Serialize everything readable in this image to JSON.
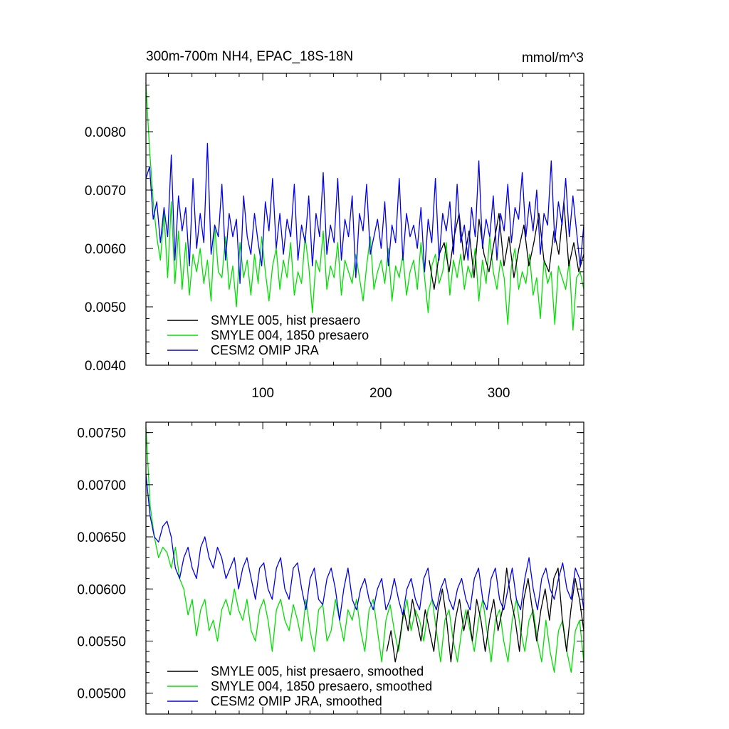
{
  "chart_data": [
    {
      "type": "line",
      "title": "300m-700m NH4, EPAC_18S-18N",
      "units": "mmol/m^3",
      "xlim": [
        1,
        372
      ],
      "ylim": [
        0.004,
        0.009
      ],
      "x_ticks": [
        100,
        200,
        300
      ],
      "x_tick_labels": [
        "100",
        "200",
        "300"
      ],
      "y_ticks": [
        0.004,
        0.005,
        0.006,
        0.007,
        0.008
      ],
      "y_tick_labels": [
        "0.0040",
        "0.0050",
        "0.0060",
        "0.0070",
        "0.0080"
      ],
      "legend_position": "bottom-left",
      "grid": false,
      "series": [
        {
          "name": "SMYLE 005, hist presaero",
          "color": "#000000",
          "x_start": 241,
          "x_end": 372,
          "values": [
            0.0058,
            0.0053,
            0.0059,
            0.0061,
            0.0056,
            0.0062,
            0.0066,
            0.0058,
            0.0063,
            0.0055,
            0.0065,
            0.0059,
            0.0056,
            0.0061,
            0.0066,
            0.0057,
            0.0062,
            0.0055,
            0.006,
            0.0064,
            0.0057,
            0.0061,
            0.0066,
            0.0058,
            0.0056,
            0.0063,
            0.0059,
            0.0068,
            0.0057,
            0.0061,
            0.0056,
            0.0059
          ]
        },
        {
          "name": "SMYLE 004, 1850 presaero",
          "color": "#00e000",
          "x_start": 1,
          "x_end": 372,
          "values": [
            0.0088,
            0.0077,
            0.0068,
            0.0062,
            0.0058,
            0.0066,
            0.0055,
            0.0068,
            0.0054,
            0.0063,
            0.0053,
            0.0061,
            0.0052,
            0.0059,
            0.0056,
            0.006,
            0.0054,
            0.0058,
            0.0051,
            0.0064,
            0.0056,
            0.0055,
            0.0062,
            0.0053,
            0.0057,
            0.005,
            0.0061,
            0.0055,
            0.0058,
            0.0052,
            0.0059,
            0.0054,
            0.0062,
            0.0056,
            0.0051,
            0.0057,
            0.006,
            0.0053,
            0.0058,
            0.0055,
            0.0061,
            0.0052,
            0.0056,
            0.0054,
            0.0062,
            0.0057,
            0.0049,
            0.0058,
            0.0056,
            0.0063,
            0.0053,
            0.0057,
            0.0055,
            0.0061,
            0.0052,
            0.0058,
            0.0056,
            0.0054,
            0.0059,
            0.0055,
            0.0051,
            0.0057,
            0.0062,
            0.0053,
            0.0056,
            0.0058,
            0.0054,
            0.006,
            0.0051,
            0.0057,
            0.0055,
            0.0059,
            0.0052,
            0.0056,
            0.0058,
            0.0053,
            0.0061,
            0.0055,
            0.0049,
            0.0057,
            0.0059,
            0.0054,
            0.0056,
            0.0061,
            0.0052,
            0.0058,
            0.0055,
            0.0059,
            0.0053,
            0.0057,
            0.0055,
            0.006,
            0.0051,
            0.0058,
            0.0054,
            0.0062,
            0.0056,
            0.0053,
            0.0058,
            0.0055,
            0.0047,
            0.0057,
            0.006,
            0.0053,
            0.0056,
            0.0054,
            0.0059,
            0.0052,
            0.0055,
            0.0048,
            0.0058,
            0.0054,
            0.0056,
            0.0047,
            0.0057,
            0.0055,
            0.0053,
            0.0058,
            0.0046,
            0.0055,
            0.0056,
            0.0053
          ]
        },
        {
          "name": "CESM2 OMIP JRA",
          "color": "#0000ee",
          "x_start": 1,
          "x_end": 372,
          "values": [
            0.0072,
            0.0074,
            0.0065,
            0.0068,
            0.0061,
            0.0067,
            0.0062,
            0.0076,
            0.0058,
            0.0069,
            0.0063,
            0.0067,
            0.0057,
            0.0072,
            0.006,
            0.0066,
            0.0061,
            0.0078,
            0.0059,
            0.0064,
            0.0062,
            0.0071,
            0.0058,
            0.0066,
            0.0062,
            0.0065,
            0.0054,
            0.0069,
            0.0062,
            0.0059,
            0.0066,
            0.0061,
            0.0057,
            0.0068,
            0.0063,
            0.0072,
            0.006,
            0.0066,
            0.0059,
            0.0065,
            0.0062,
            0.0071,
            0.0058,
            0.0064,
            0.0061,
            0.0069,
            0.0057,
            0.0066,
            0.0062,
            0.0073,
            0.0059,
            0.0064,
            0.0061,
            0.0072,
            0.0058,
            0.0065,
            0.0062,
            0.0069,
            0.0055,
            0.0066,
            0.0063,
            0.0071,
            0.0059,
            0.0062,
            0.0065,
            0.006,
            0.0068,
            0.0057,
            0.0064,
            0.0061,
            0.0072,
            0.0058,
            0.0066,
            0.0062,
            0.0064,
            0.006,
            0.0067,
            0.0056,
            0.0065,
            0.0061,
            0.0072,
            0.0058,
            0.0066,
            0.0063,
            0.0068,
            0.0059,
            0.0071,
            0.0061,
            0.0064,
            0.0058,
            0.0067,
            0.0062,
            0.0075,
            0.006,
            0.0065,
            0.0062,
            0.0069,
            0.0058,
            0.0066,
            0.0063,
            0.0071,
            0.0061,
            0.0067,
            0.0065,
            0.0073,
            0.0062,
            0.0068,
            0.0063,
            0.007,
            0.0059,
            0.0066,
            0.0064,
            0.0075,
            0.0061,
            0.0068,
            0.0064,
            0.0072,
            0.0062,
            0.0069,
            0.0063,
            0.0057,
            0.0064
          ]
        }
      ]
    },
    {
      "type": "line",
      "xlim": [
        1,
        372
      ],
      "ylim": [
        0.0048,
        0.0076
      ],
      "y_ticks": [
        0.005,
        0.0055,
        0.006,
        0.0065,
        0.007,
        0.0075
      ],
      "y_tick_labels": [
        "0.00500",
        "0.00550",
        "0.00600",
        "0.00650",
        "0.00700",
        "0.00750"
      ],
      "legend_position": "bottom-left",
      "grid": false,
      "series": [
        {
          "name": "SMYLE 005, hist presaero, smoothed",
          "color": "#000000",
          "x_start": 205,
          "x_end": 372,
          "values": [
            0.0054,
            0.0056,
            0.0053,
            0.0055,
            0.0058,
            0.0056,
            0.0059,
            0.0057,
            0.0055,
            0.0058,
            0.0056,
            0.0054,
            0.0058,
            0.006,
            0.0057,
            0.0053,
            0.0057,
            0.0059,
            0.0056,
            0.0058,
            0.0055,
            0.0059,
            0.0057,
            0.0054,
            0.0057,
            0.0059,
            0.0056,
            0.0058,
            0.0062,
            0.0059,
            0.0057,
            0.0054,
            0.0059,
            0.0061,
            0.0058,
            0.0055,
            0.0058,
            0.006,
            0.0057,
            0.0061,
            0.0062,
            0.0057,
            0.0054,
            0.0058,
            0.0061,
            0.0059,
            0.0056
          ]
        },
        {
          "name": "SMYLE 004, 1850 presaero, smoothed",
          "color": "#00e000",
          "x_start": 1,
          "x_end": 372,
          "values": [
            0.00755,
            0.0068,
            0.0065,
            0.0063,
            0.0064,
            0.00635,
            0.0062,
            0.0064,
            0.0061,
            0.006,
            0.00575,
            0.0059,
            0.00555,
            0.0058,
            0.0059,
            0.0056,
            0.0057,
            0.0055,
            0.0058,
            0.0059,
            0.00575,
            0.006,
            0.0058,
            0.0057,
            0.0059,
            0.0056,
            0.0055,
            0.0058,
            0.0059,
            0.0057,
            0.0054,
            0.0058,
            0.0059,
            0.0057,
            0.0056,
            0.00585,
            0.0057,
            0.0055,
            0.0059,
            0.0056,
            0.0054,
            0.0058,
            0.00585,
            0.0055,
            0.0056,
            0.0059,
            0.0057,
            0.0055,
            0.0058,
            0.0057,
            0.0059,
            0.0056,
            0.0054,
            0.0058,
            0.0059,
            0.0056,
            0.0053,
            0.0057,
            0.00585,
            0.0056,
            0.0054,
            0.0057,
            0.0059,
            0.0056,
            0.0058,
            0.0057,
            0.0055,
            0.0058,
            0.0059,
            0.0056,
            0.0053,
            0.0057,
            0.0058,
            0.0055,
            0.0053,
            0.0056,
            0.0058,
            0.0056,
            0.0054,
            0.0057,
            0.0059,
            0.0056,
            0.0053,
            0.0057,
            0.0058,
            0.0055,
            0.0053,
            0.0057,
            0.0059,
            0.0056,
            0.0054,
            0.0057,
            0.0058,
            0.0055,
            0.0053,
            0.0057,
            0.0054,
            0.0052,
            0.0056,
            0.0057,
            0.0054,
            0.0052,
            0.0056,
            0.0057,
            0.0053
          ]
        },
        {
          "name": "CESM2 OMIP JRA, smoothed",
          "color": "#0000ee",
          "x_start": 1,
          "x_end": 372,
          "values": [
            0.0071,
            0.0067,
            0.0065,
            0.00645,
            0.0066,
            0.00665,
            0.0065,
            0.0062,
            0.0061,
            0.0063,
            0.0064,
            0.0062,
            0.0061,
            0.0064,
            0.0065,
            0.0063,
            0.0062,
            0.0064,
            0.0063,
            0.0061,
            0.0062,
            0.0063,
            0.006,
            0.0062,
            0.0063,
            0.0061,
            0.0059,
            0.0062,
            0.00625,
            0.006,
            0.0059,
            0.0062,
            0.0063,
            0.006,
            0.0059,
            0.0062,
            0.00625,
            0.006,
            0.0058,
            0.0061,
            0.0062,
            0.0059,
            0.00585,
            0.0061,
            0.0062,
            0.006,
            0.0057,
            0.006,
            0.0062,
            0.0059,
            0.0058,
            0.006,
            0.0061,
            0.0059,
            0.0058,
            0.006,
            0.0061,
            0.0058,
            0.0059,
            0.0061,
            0.0059,
            0.00575,
            0.006,
            0.0061,
            0.0059,
            0.0058,
            0.0061,
            0.0062,
            0.0059,
            0.0058,
            0.006,
            0.0061,
            0.0059,
            0.0058,
            0.006,
            0.0061,
            0.0059,
            0.0058,
            0.0061,
            0.0062,
            0.0059,
            0.0058,
            0.0061,
            0.0062,
            0.0059,
            0.0058,
            0.006,
            0.0062,
            0.0059,
            0.0058,
            0.0061,
            0.0063,
            0.006,
            0.0058,
            0.0061,
            0.0062,
            0.006,
            0.0059,
            0.0061,
            0.00625,
            0.006,
            0.0059,
            0.0062,
            0.0061,
            0.0058
          ]
        }
      ]
    }
  ]
}
